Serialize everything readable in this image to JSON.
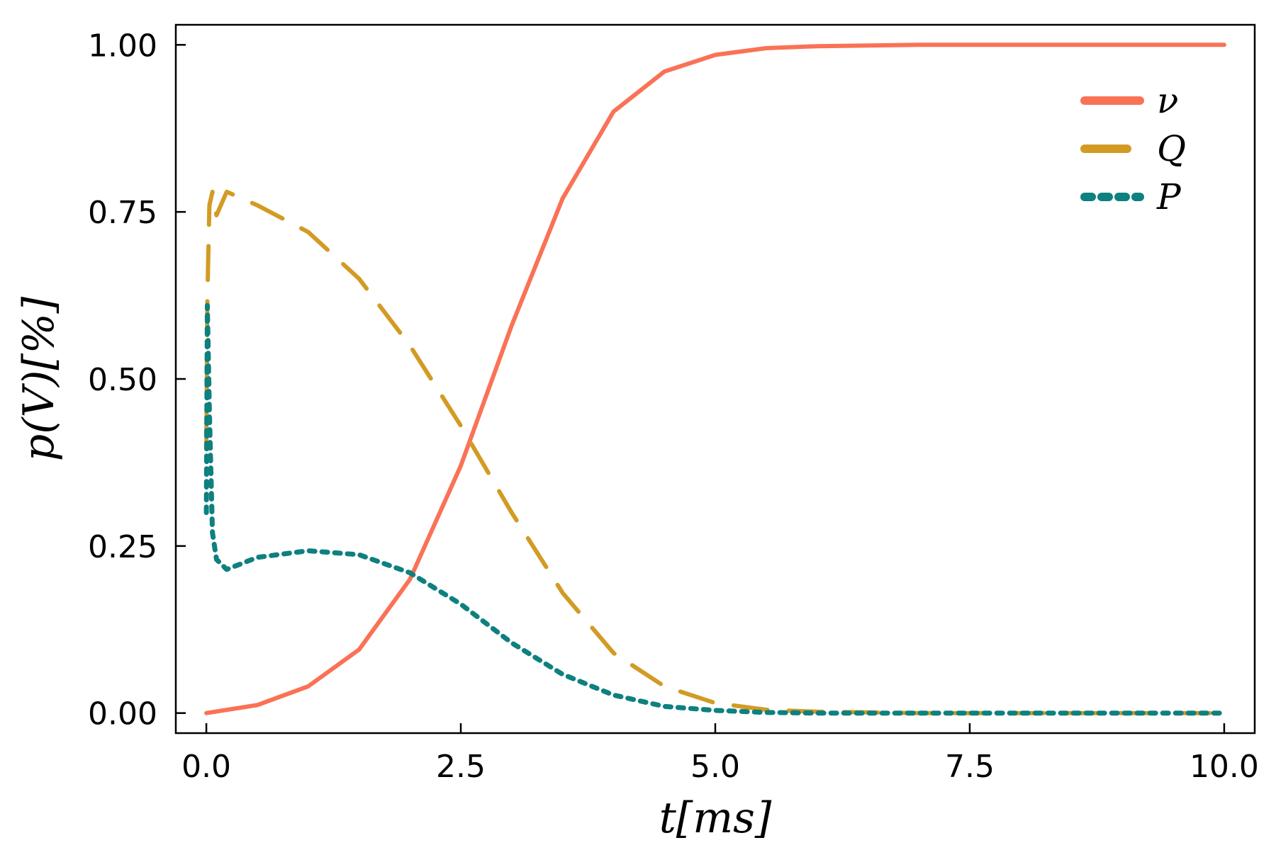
{
  "chart_data": {
    "type": "line",
    "title": "",
    "xlabel": "t[ms]",
    "ylabel": "p(V)[%]",
    "xlim": [
      -0.3,
      10.3
    ],
    "ylim": [
      -0.03,
      1.03
    ],
    "xticks": [
      "0.0",
      "2.5",
      "5.0",
      "7.5",
      "10.0"
    ],
    "yticks": [
      "0.00",
      "0.25",
      "0.50",
      "0.75",
      "1.00"
    ],
    "grid": false,
    "legend_position": "top-right",
    "series": [
      {
        "name": "ν",
        "color": "#fa7256",
        "style": "solid",
        "x": [
          0,
          0.5,
          1.0,
          1.5,
          2.0,
          2.5,
          3.0,
          3.5,
          4.0,
          4.5,
          5.0,
          5.5,
          6.0,
          7.0,
          8.0,
          9.0,
          10.0
        ],
        "y": [
          0.0,
          0.012,
          0.04,
          0.095,
          0.2,
          0.37,
          0.58,
          0.77,
          0.9,
          0.96,
          0.985,
          0.995,
          0.998,
          1.0,
          1.0,
          1.0,
          1.0
        ]
      },
      {
        "name": "Q",
        "color": "#d29b24",
        "style": "dashed",
        "x": [
          0,
          0.01,
          0.03,
          0.06,
          0.1,
          0.2,
          0.5,
          1.0,
          1.5,
          2.0,
          2.5,
          3.0,
          3.5,
          4.0,
          4.5,
          5.0,
          5.5,
          6.0,
          7.0,
          8.0,
          9.0,
          10.0
        ],
        "y": [
          0.4,
          0.62,
          0.76,
          0.78,
          0.745,
          0.78,
          0.76,
          0.72,
          0.65,
          0.55,
          0.43,
          0.3,
          0.18,
          0.09,
          0.04,
          0.015,
          0.005,
          0.002,
          0.0,
          0.0,
          0.0,
          0.0
        ]
      },
      {
        "name": "P",
        "color": "#0e8080",
        "style": "dotted",
        "x": [
          0,
          0.01,
          0.03,
          0.06,
          0.1,
          0.2,
          0.5,
          1.0,
          1.5,
          2.0,
          2.5,
          3.0,
          3.5,
          4.0,
          4.5,
          5.0,
          5.5,
          6.0,
          7.0,
          8.0,
          9.0,
          10.0
        ],
        "y": [
          0.3,
          0.61,
          0.45,
          0.27,
          0.23,
          0.215,
          0.233,
          0.243,
          0.237,
          0.21,
          0.163,
          0.105,
          0.058,
          0.027,
          0.01,
          0.004,
          0.001,
          0.0,
          0.0,
          0.0,
          0.0,
          0.0
        ]
      }
    ]
  }
}
